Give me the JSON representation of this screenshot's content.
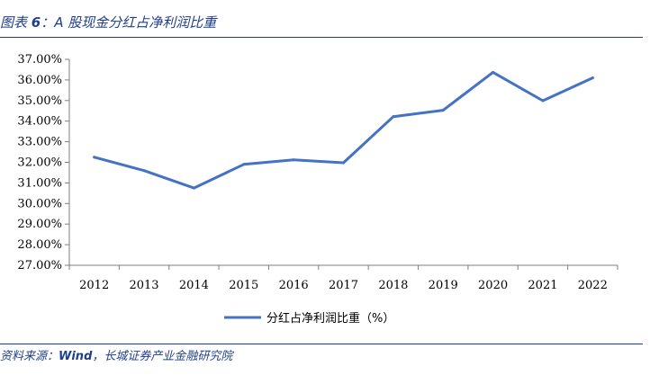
{
  "header": {
    "prefix": "图表 ",
    "number": "6",
    "sep": "：",
    "title": "A 股现金分红占净利润比重"
  },
  "footer": {
    "prefix": "资料来源：",
    "source": "Wind",
    "rest": "，长城证券产业金融研究院"
  },
  "colors": {
    "line": "#4472c4",
    "accent": "#1f3f8a",
    "axis": "#7f7f7f"
  },
  "chart_data": {
    "type": "line",
    "categories": [
      "2012",
      "2013",
      "2014",
      "2015",
      "2016",
      "2017",
      "2018",
      "2019",
      "2020",
      "2021",
      "2022"
    ],
    "series": [
      {
        "name": "分红占净利润比重（%）",
        "values": [
          32.25,
          31.6,
          30.75,
          31.9,
          32.12,
          31.98,
          34.22,
          34.53,
          36.37,
          34.99,
          36.1
        ]
      }
    ],
    "ylim": [
      27,
      37
    ],
    "ytick_step": 1,
    "ytick_labels": [
      "27.00%",
      "28.00%",
      "29.00%",
      "30.00%",
      "31.00%",
      "32.00%",
      "33.00%",
      "34.00%",
      "35.00%",
      "36.00%",
      "37.00%"
    ],
    "grid": false,
    "legend_position": "bottom",
    "title": "",
    "xlabel": "",
    "ylabel": ""
  }
}
